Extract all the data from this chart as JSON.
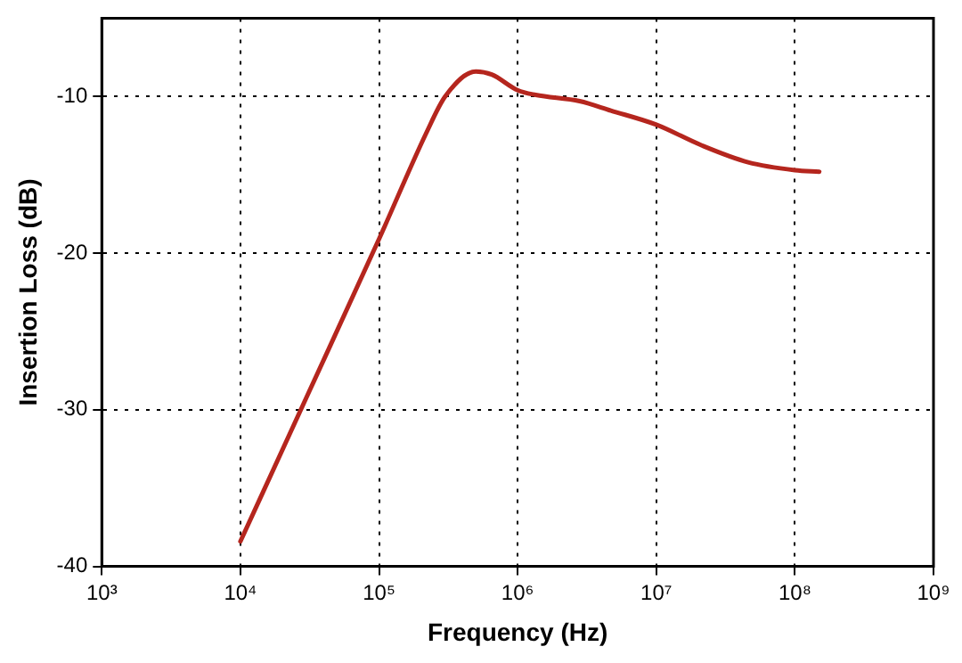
{
  "chart_data": {
    "type": "line",
    "xlabel": "Frequency (Hz)",
    "ylabel": "Insertion Loss (dB)",
    "log": "x",
    "x": [
      10000,
      30000,
      100000,
      220000,
      300000,
      500000,
      650000,
      1000000,
      1350000,
      2800000,
      4700000,
      10000000,
      21000000,
      46000000,
      100000000,
      150000000
    ],
    "series": [
      {
        "color": "#b5261e",
        "values": [
          -38.4,
          -29.2,
          -19.1,
          -12.3,
          -10.0,
          -8.4,
          -8.6,
          -9.6,
          -9.9,
          -10.3,
          -10.9,
          -11.8,
          -13.1,
          -14.2,
          -14.7,
          -14.8
        ]
      }
    ],
    "xlim": [
      1000,
      1000000000
    ],
    "xticks": [
      {
        "value": 1000,
        "label": "10³"
      },
      {
        "value": 10000,
        "label": "10⁴"
      },
      {
        "value": 100000,
        "label": "10⁵"
      },
      {
        "value": 1000000,
        "label": "10⁶"
      },
      {
        "value": 10000000,
        "label": "10⁷"
      },
      {
        "value": 100000000,
        "label": "10⁸"
      },
      {
        "value": 1000000000,
        "label": "10⁹"
      }
    ],
    "ylim": [
      -40,
      -5
    ],
    "yticks": [
      -40,
      -30,
      -20,
      -10
    ],
    "grid": true,
    "legend": false,
    "marker": "none",
    "line_style": "solid"
  }
}
